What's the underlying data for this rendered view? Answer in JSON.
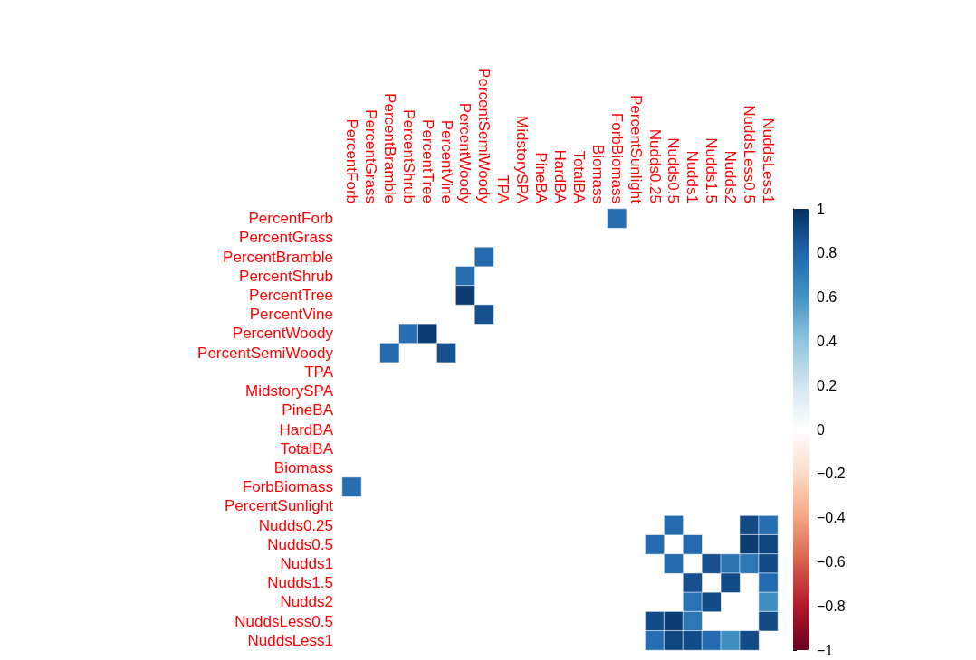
{
  "chart_data": {
    "type": "heatmap",
    "categories": [
      "PercentForb",
      "PercentGrass",
      "PercentBramble",
      "PercentShrub",
      "PercentTree",
      "PercentVine",
      "PercentWoody",
      "PercentSemiWoody",
      "TPA",
      "MidstorySPA",
      "PineBA",
      "HardBA",
      "TotalBA",
      "Biomass",
      "ForbBiomass",
      "PercentSunlight",
      "Nudds0.25",
      "Nudds0.5",
      "Nudds1",
      "Nudds1.5",
      "Nudds2",
      "NuddsLess0.5",
      "NuddsLess1"
    ],
    "y_categories": [
      "PercentForb",
      "PercentGrass",
      "PercentBramble",
      "PercentShrub",
      "PercentTree",
      "PercentVine",
      "PercentWoody",
      "PercentSemiWoody",
      "TPA",
      "MidstorySPA",
      "PineBA",
      "HardBA",
      "TotalBA",
      "Biomass",
      "ForbBiomass",
      "PercentSunlight",
      "Nudds0.25",
      "Nudds0.5",
      "Nudds1",
      "Nudds1.5",
      "Nudds2",
      "NuddsLess0.5",
      "NuddsLess1"
    ],
    "cells": [
      [
        null,
        null,
        null,
        null,
        null,
        null,
        null,
        null,
        null,
        null,
        null,
        null,
        null,
        null,
        0.76,
        null,
        null,
        null,
        null,
        null,
        null,
        null,
        null
      ],
      [
        null,
        null,
        null,
        null,
        null,
        null,
        null,
        null,
        null,
        null,
        null,
        null,
        null,
        null,
        null,
        null,
        null,
        null,
        null,
        null,
        null,
        null,
        null
      ],
      [
        null,
        null,
        null,
        null,
        null,
        null,
        null,
        0.78,
        null,
        null,
        null,
        null,
        null,
        null,
        null,
        null,
        null,
        null,
        null,
        null,
        null,
        null,
        null
      ],
      [
        null,
        null,
        null,
        null,
        null,
        null,
        0.76,
        null,
        null,
        null,
        null,
        null,
        null,
        null,
        null,
        null,
        null,
        null,
        null,
        null,
        null,
        null,
        null
      ],
      [
        null,
        null,
        null,
        null,
        null,
        null,
        0.95,
        null,
        null,
        null,
        null,
        null,
        null,
        null,
        null,
        null,
        null,
        null,
        null,
        null,
        null,
        null,
        null
      ],
      [
        null,
        null,
        null,
        null,
        null,
        null,
        null,
        0.88,
        null,
        null,
        null,
        null,
        null,
        null,
        null,
        null,
        null,
        null,
        null,
        null,
        null,
        null,
        null
      ],
      [
        null,
        null,
        null,
        0.76,
        0.95,
        null,
        null,
        null,
        null,
        null,
        null,
        null,
        null,
        null,
        null,
        null,
        null,
        null,
        null,
        null,
        null,
        null,
        null
      ],
      [
        null,
        null,
        0.78,
        null,
        null,
        0.88,
        null,
        null,
        null,
        null,
        null,
        null,
        null,
        null,
        null,
        null,
        null,
        null,
        null,
        null,
        null,
        null,
        null
      ],
      [
        null,
        null,
        null,
        null,
        null,
        null,
        null,
        null,
        null,
        null,
        null,
        null,
        null,
        null,
        null,
        null,
        null,
        null,
        null,
        null,
        null,
        null,
        null
      ],
      [
        null,
        null,
        null,
        null,
        null,
        null,
        null,
        null,
        null,
        null,
        null,
        null,
        null,
        null,
        null,
        null,
        null,
        null,
        null,
        null,
        null,
        null,
        null
      ],
      [
        null,
        null,
        null,
        null,
        null,
        null,
        null,
        null,
        null,
        null,
        null,
        null,
        null,
        null,
        null,
        null,
        null,
        null,
        null,
        null,
        null,
        null,
        null
      ],
      [
        null,
        null,
        null,
        null,
        null,
        null,
        null,
        null,
        null,
        null,
        null,
        null,
        null,
        null,
        null,
        null,
        null,
        null,
        null,
        null,
        null,
        null,
        null
      ],
      [
        null,
        null,
        null,
        null,
        null,
        null,
        null,
        null,
        null,
        null,
        null,
        null,
        null,
        null,
        null,
        null,
        null,
        null,
        null,
        null,
        null,
        null,
        null
      ],
      [
        null,
        null,
        null,
        null,
        null,
        null,
        null,
        null,
        null,
        null,
        null,
        null,
        null,
        null,
        null,
        null,
        null,
        null,
        null,
        null,
        null,
        null,
        null
      ],
      [
        0.76,
        null,
        null,
        null,
        null,
        null,
        null,
        null,
        null,
        null,
        null,
        null,
        null,
        null,
        null,
        null,
        null,
        null,
        null,
        null,
        null,
        null,
        null
      ],
      [
        null,
        null,
        null,
        null,
        null,
        null,
        null,
        null,
        null,
        null,
        null,
        null,
        null,
        null,
        null,
        null,
        null,
        null,
        null,
        null,
        null,
        null,
        null
      ],
      [
        null,
        null,
        null,
        null,
        null,
        null,
        null,
        null,
        null,
        null,
        null,
        null,
        null,
        null,
        null,
        null,
        null,
        0.78,
        null,
        null,
        null,
        0.9,
        0.76
      ],
      [
        null,
        null,
        null,
        null,
        null,
        null,
        null,
        null,
        null,
        null,
        null,
        null,
        null,
        null,
        null,
        null,
        0.78,
        null,
        0.78,
        null,
        null,
        0.95,
        0.92
      ],
      [
        null,
        null,
        null,
        null,
        null,
        null,
        null,
        null,
        null,
        null,
        null,
        null,
        null,
        null,
        null,
        null,
        null,
        0.78,
        null,
        0.88,
        0.74,
        0.73,
        0.9
      ],
      [
        null,
        null,
        null,
        null,
        null,
        null,
        null,
        null,
        null,
        null,
        null,
        null,
        null,
        null,
        null,
        null,
        null,
        null,
        0.88,
        null,
        0.9,
        null,
        0.78
      ],
      [
        null,
        null,
        null,
        null,
        null,
        null,
        null,
        null,
        null,
        null,
        null,
        null,
        null,
        null,
        null,
        null,
        null,
        null,
        0.74,
        0.9,
        null,
        null,
        0.62
      ],
      [
        null,
        null,
        null,
        null,
        null,
        null,
        null,
        null,
        null,
        null,
        null,
        null,
        null,
        null,
        null,
        null,
        0.9,
        0.95,
        0.73,
        null,
        null,
        null,
        0.9
      ],
      [
        null,
        null,
        null,
        null,
        null,
        null,
        null,
        null,
        null,
        null,
        null,
        null,
        null,
        null,
        null,
        null,
        0.76,
        0.92,
        0.9,
        0.78,
        0.62,
        0.9,
        null
      ]
    ],
    "clim": [
      -1,
      1
    ],
    "cticks": [
      {
        "value": -1,
        "label": "−1"
      },
      {
        "value": -0.8,
        "label": "−0.8"
      },
      {
        "value": -0.6,
        "label": "−0.6"
      },
      {
        "value": -0.4,
        "label": "−0.4"
      },
      {
        "value": -0.2,
        "label": "−0.2"
      },
      0,
      0.2,
      0.4,
      0.6,
      0.8,
      1
    ]
  }
}
